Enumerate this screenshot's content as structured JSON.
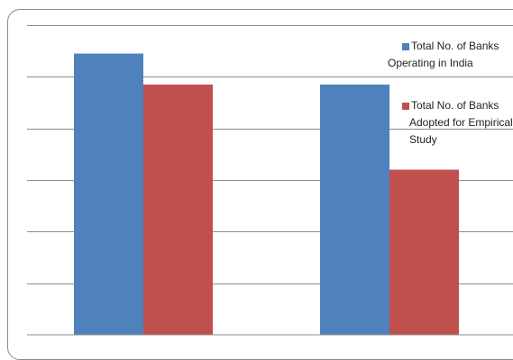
{
  "chart_data": {
    "type": "bar",
    "categories": [
      "",
      ""
    ],
    "series": [
      {
        "name": "Total No. of Banks Operating in India",
        "color": "#4f81bd",
        "values": [
          5.45,
          4.85
        ]
      },
      {
        "name": "Total No. of Banks Adopted for Empirical Study",
        "color": "#c0504d",
        "values": [
          4.85,
          3.2
        ]
      }
    ],
    "ylim": [
      0,
      6
    ],
    "grid": true,
    "legend_position": "right"
  },
  "legend": {
    "line_1a": "Total No. of Banks",
    "line_1b": "Operating in India",
    "line_2a": "Total No. of Banks",
    "line_2b": "Adopted for Empirical",
    "line_2c": "Study"
  }
}
